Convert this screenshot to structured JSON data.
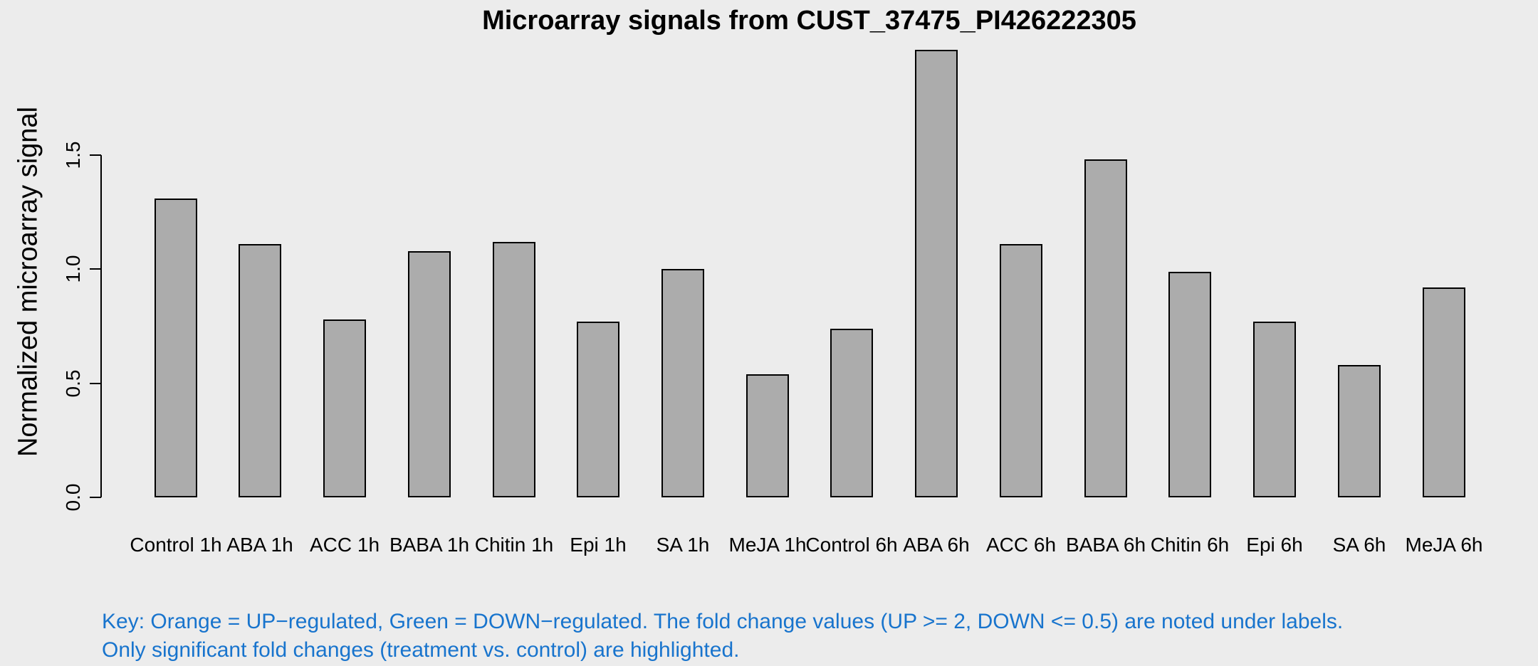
{
  "title": "Microarray signals from CUST_37475_PI426222305",
  "y_axis": {
    "label": "Normalized microarray signal",
    "tick_labels": [
      "0.0",
      "0.5",
      "1.0",
      "1.5"
    ]
  },
  "key": {
    "line1": "Key: Orange = UP−regulated, Green = DOWN−regulated. The fold change values (UP >= 2, DOWN <= 0.5) are noted under labels.",
    "line2": "Only significant fold changes (treatment vs. control) are highlighted.",
    "color": "#1874CD"
  },
  "colors": {
    "background": "#ECECEC",
    "bar_fill": "#ACACAC",
    "bar_border": "#000000",
    "axis": "#000000",
    "key_text": "#1874CD"
  },
  "chart_data": {
    "type": "bar",
    "title": "Microarray signals from CUST_37475_PI426222305",
    "xlabel": "",
    "ylabel": "Normalized microarray signal",
    "categories": [
      "Control 1h",
      "ABA 1h",
      "ACC 1h",
      "BABA 1h",
      "Chitin 1h",
      "Epi 1h",
      "SA 1h",
      "MeJA 1h",
      "Control 6h",
      "ABA 6h",
      "ACC 6h",
      "BABA 6h",
      "Chitin 6h",
      "Epi 6h",
      "SA 6h",
      "MeJA 6h"
    ],
    "values": [
      1.31,
      1.11,
      0.78,
      1.08,
      1.12,
      0.77,
      1.0,
      0.54,
      0.74,
      1.96,
      1.11,
      1.48,
      0.99,
      0.77,
      0.58,
      0.92
    ],
    "yticks": [
      0.0,
      0.5,
      1.0,
      1.5
    ],
    "ylim": [
      0,
      2.0
    ],
    "grid": false,
    "legend_position": "none",
    "annotation": "Key: Orange = UP−regulated, Green = DOWN−regulated. The fold change values (UP >= 2, DOWN <= 0.5) are noted under labels. Only significant fold changes (treatment vs. control) are highlighted."
  }
}
